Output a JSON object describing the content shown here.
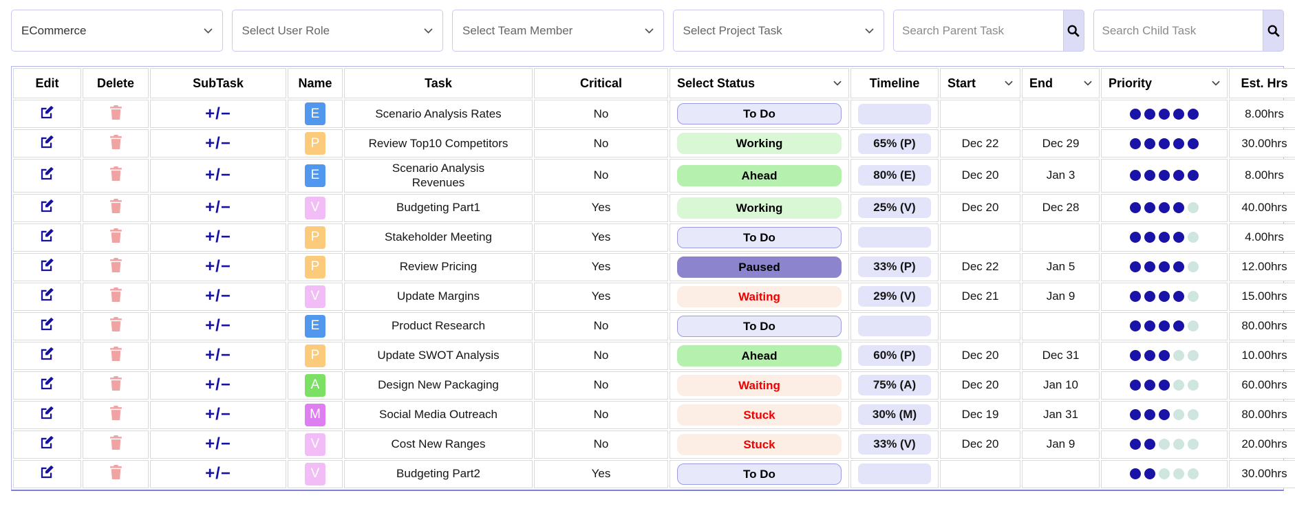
{
  "toolbar": {
    "project_select": {
      "value": "ECommerce"
    },
    "role_select": {
      "placeholder": "Select User Role"
    },
    "member_select": {
      "placeholder": "Select Team Member"
    },
    "task_select": {
      "placeholder": "Select Project Task"
    },
    "parent_search": {
      "placeholder": "Search Parent Task"
    },
    "child_search": {
      "placeholder": "Search Child Task"
    }
  },
  "table": {
    "headers": {
      "edit": "Edit",
      "delete": "Delete",
      "subtask": "SubTask",
      "name": "Name",
      "task": "Task",
      "critical": "Critical",
      "status": "Select Status",
      "timeline": "Timeline",
      "start": "Start",
      "end": "End",
      "priority": "Priority",
      "est_hrs": "Est. Hrs"
    },
    "subtask_symbol": "+/−",
    "priority_max": 5,
    "rows": [
      {
        "badge": "E",
        "task": "Scenario Analysis Rates",
        "critical": "No",
        "status": "To Do",
        "timeline": "",
        "start": "",
        "end": "",
        "priority": 5,
        "est_hrs": "8.00hrs"
      },
      {
        "badge": "P",
        "task": "Review Top10 Competitors",
        "critical": "No",
        "status": "Working",
        "timeline": "65% (P)",
        "start": "Dec 22",
        "end": "Dec 29",
        "priority": 5,
        "est_hrs": "30.00hrs"
      },
      {
        "badge": "E",
        "task": "Scenario Analysis Revenues",
        "critical": "No",
        "status": "Ahead",
        "timeline": "80% (E)",
        "start": "Dec 20",
        "end": "Jan 3",
        "priority": 5,
        "est_hrs": "8.00hrs"
      },
      {
        "badge": "V",
        "task": "Budgeting Part1",
        "critical": "Yes",
        "status": "Working",
        "timeline": "25% (V)",
        "start": "Dec 20",
        "end": "Dec 28",
        "priority": 4,
        "est_hrs": "40.00hrs"
      },
      {
        "badge": "P",
        "task": "Stakeholder Meeting",
        "critical": "Yes",
        "status": "To Do",
        "timeline": "",
        "start": "",
        "end": "",
        "priority": 4,
        "est_hrs": "4.00hrs"
      },
      {
        "badge": "P",
        "task": "Review Pricing",
        "critical": "Yes",
        "status": "Paused",
        "timeline": "33% (P)",
        "start": "Dec 22",
        "end": "Jan 5",
        "priority": 4,
        "est_hrs": "12.00hrs"
      },
      {
        "badge": "V",
        "task": "Update Margins",
        "critical": "Yes",
        "status": "Waiting",
        "timeline": "29% (V)",
        "start": "Dec 21",
        "end": "Jan 9",
        "priority": 4,
        "est_hrs": "15.00hrs"
      },
      {
        "badge": "E",
        "task": "Product Research",
        "critical": "No",
        "status": "To Do",
        "timeline": "",
        "start": "",
        "end": "",
        "priority": 4,
        "est_hrs": "80.00hrs"
      },
      {
        "badge": "P",
        "task": "Update SWOT Analysis",
        "critical": "No",
        "status": "Ahead",
        "timeline": "60% (P)",
        "start": "Dec 20",
        "end": "Dec 31",
        "priority": 3,
        "est_hrs": "10.00hrs"
      },
      {
        "badge": "A",
        "task": "Design New Packaging",
        "critical": "No",
        "status": "Waiting",
        "timeline": "75% (A)",
        "start": "Dec 20",
        "end": "Jan 10",
        "priority": 3,
        "est_hrs": "60.00hrs"
      },
      {
        "badge": "M",
        "task": "Social Media Outreach",
        "critical": "No",
        "status": "Stuck",
        "timeline": "30% (M)",
        "start": "Dec 19",
        "end": "Jan 31",
        "priority": 3,
        "est_hrs": "80.00hrs"
      },
      {
        "badge": "V",
        "task": "Cost New Ranges",
        "critical": "No",
        "status": "Stuck",
        "timeline": "33% (V)",
        "start": "Dec 20",
        "end": "Jan 9",
        "priority": 2,
        "est_hrs": "20.00hrs"
      },
      {
        "badge": "V",
        "task": "Budgeting Part2",
        "critical": "Yes",
        "status": "To Do",
        "timeline": "",
        "start": "",
        "end": "",
        "priority": 2,
        "est_hrs": "30.00hrs"
      }
    ]
  },
  "colors": {
    "badge": {
      "E": "#5197ee",
      "P": "#fbca7b",
      "V": "#f2bcf6",
      "A": "#7ce065",
      "M": "#de7ef0"
    },
    "status": {
      "To Do": {
        "bg": "#e8e8fb",
        "text": "#000000",
        "border": "#9b9be4"
      },
      "Working": {
        "bg": "#d9f7d5",
        "text": "#000000"
      },
      "Ahead": {
        "bg": "#b6f0ae",
        "text": "#000000"
      },
      "Paused": {
        "bg": "#8c85ce",
        "text": "#000000"
      },
      "Waiting": {
        "bg": "#fdeee5",
        "text": "#ee0000"
      },
      "Stuck": {
        "bg": "#fdeee5",
        "text": "#ee0000"
      }
    },
    "timeline_bg": "#e3e3f9",
    "dot_filled": "#1a13a7",
    "dot_empty": "#cfe6e0",
    "icon_navy": "#16129f",
    "trash_pink": "#f0a3a3"
  }
}
